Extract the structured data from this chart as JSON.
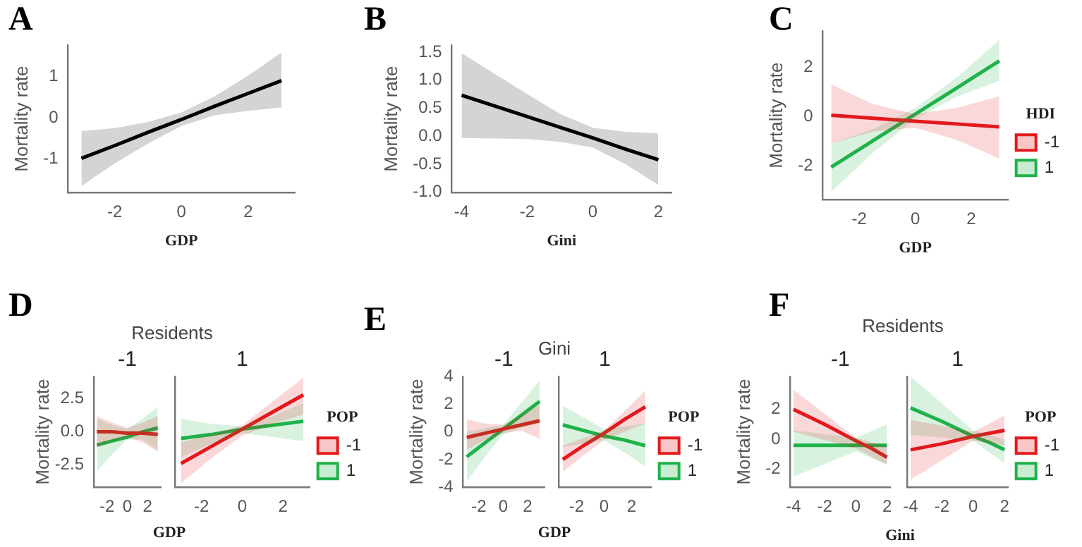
{
  "chart_data": [
    {
      "type": "line",
      "title": "A",
      "xlabel": "GDP",
      "ylabel": "Mortality rate",
      "xlim": [
        -3.4,
        3.4
      ],
      "xticks": [
        -2,
        0,
        2
      ],
      "ylim": [
        -1.8,
        1.75
      ],
      "yticks": [
        -1,
        0,
        1
      ],
      "series": [
        {
          "color": "#000000",
          "x": [
            -3,
            -2,
            -1,
            0,
            1,
            2,
            3
          ],
          "values": [
            -0.98,
            -0.67,
            -0.35,
            -0.04,
            0.28,
            0.59,
            0.9
          ],
          "lower": [
            -1.65,
            -1.1,
            -0.62,
            -0.2,
            0.06,
            0.17,
            0.25
          ],
          "upper": [
            -0.32,
            -0.25,
            -0.1,
            0.13,
            0.52,
            1.02,
            1.58
          ]
        }
      ]
    },
    {
      "type": "line",
      "title": "B",
      "xlabel": "Gini",
      "ylabel": "Mortality rate",
      "xlim": [
        -4.3,
        2.4
      ],
      "xticks": [
        -4,
        -2,
        0,
        2
      ],
      "ylim": [
        -1,
        1.62
      ],
      "yticks": [
        {
          "value": -1,
          "label": "-1.0"
        },
        -0.5,
        {
          "value": 0,
          "label": "0.0"
        },
        0.5,
        {
          "value": 1,
          "label": "1.0"
        },
        1.5
      ],
      "series": [
        {
          "color": "#000000",
          "x": [
            -4,
            -2,
            -1,
            0,
            1,
            2
          ],
          "values": [
            0.73,
            0.35,
            0.16,
            -0.03,
            -0.23,
            -0.42
          ],
          "lower": [
            -0.03,
            -0.05,
            -0.1,
            -0.2,
            -0.5,
            -0.87
          ],
          "upper": [
            1.48,
            0.75,
            0.4,
            0.15,
            0.08,
            0.05
          ]
        }
      ]
    },
    {
      "type": "line",
      "title": "C",
      "xlabel": "GDP",
      "ylabel": "Mortality rate",
      "legend": "right",
      "legend_title": "HDI",
      "xlim": [
        -3.3,
        3.3
      ],
      "xticks": [
        -2,
        0,
        2
      ],
      "ylim": [
        -3.35,
        3.45
      ],
      "yticks": [
        -2,
        0,
        2
      ],
      "series": [
        {
          "name": "-1",
          "color": "#e31a1c",
          "x": [
            -3,
            -1.5,
            0,
            1.5,
            3
          ],
          "values": [
            0.05,
            -0.07,
            -0.19,
            -0.3,
            -0.42
          ],
          "lower": [
            -1.1,
            -0.6,
            -0.45,
            -0.95,
            -1.7
          ],
          "upper": [
            1.3,
            0.5,
            0.1,
            0.35,
            0.82
          ]
        },
        {
          "name": "1",
          "color": "#1fb24a",
          "x": [
            -3,
            -1.5,
            0,
            1.5,
            3
          ],
          "values": [
            -2.05,
            -0.97,
            0.1,
            1.17,
            2.25
          ],
          "lower": [
            -3.05,
            -1.45,
            -0.1,
            0.8,
            1.45
          ],
          "upper": [
            -1.1,
            -0.5,
            0.35,
            1.6,
            3.1
          ]
        }
      ]
    },
    {
      "type": "line",
      "title": "D",
      "subtitle": "Residents",
      "xlabel": "GDP",
      "ylabel": "Mortality rate",
      "annotations": [
        "-1"
      ],
      "xlim": [
        -3.3,
        3.3
      ],
      "xticks": [
        -2,
        0,
        2
      ],
      "ylim": [
        -4.2,
        4.2
      ],
      "yticks": [
        {
          "value": -2.5,
          "label": "-2.5"
        },
        {
          "value": 0,
          "label": "0.0"
        },
        2.5
      ],
      "series": [
        {
          "color": "#e31a1c",
          "x": [
            -3,
            -1.5,
            0,
            1.5,
            3
          ],
          "values": [
            0,
            0,
            -0.1,
            -0.1,
            -0.2
          ],
          "lower": [
            -1.2,
            -0.7,
            -0.4,
            -0.8,
            -1.5
          ],
          "upper": [
            1.2,
            0.7,
            0.3,
            0.7,
            1.2
          ]
        },
        {
          "color": "#1fb24a",
          "x": [
            -3,
            -1.5,
            0,
            1.5,
            3
          ],
          "values": [
            -1,
            -0.7,
            -0.4,
            0,
            0.3
          ],
          "lower": [
            -3,
            -1.7,
            -0.6,
            -0.6,
            -1.4
          ],
          "upper": [
            1,
            0.5,
            0.2,
            1,
            1.9
          ]
        }
      ]
    },
    {
      "type": "line",
      "annotations": [
        "1"
      ],
      "legend": "right",
      "legend_title": "POP",
      "tick_labels": "x",
      "xlim": [
        -3.3,
        3.3
      ],
      "xticks": [
        -2,
        0,
        2
      ],
      "ylim": [
        -4.2,
        4.2
      ],
      "series": [
        {
          "name": "-1",
          "color": "#e31a1c",
          "x": [
            -3,
            -1.5,
            0,
            1.5,
            3
          ],
          "values": [
            -2.4,
            -1.1,
            0.2,
            1.5,
            2.8
          ],
          "lower": [
            -3.9,
            -2,
            -0.3,
            0.6,
            1.3
          ],
          "upper": [
            -0.8,
            -0.2,
            0.5,
            2.3,
            4.1
          ]
        },
        {
          "name": "1",
          "color": "#1fb24a",
          "x": [
            -3,
            -1.5,
            0,
            1.5,
            3
          ],
          "values": [
            -0.5,
            -0.2,
            0.2,
            0.5,
            0.8
          ],
          "lower": [
            -1.9,
            -0.9,
            -0.1,
            -0.4,
            -0.7
          ],
          "upper": [
            1,
            0.6,
            0.4,
            1.2,
            2.2
          ]
        }
      ]
    },
    {
      "type": "line",
      "title": "E",
      "subtitle": "Gini",
      "xlabel": "GDP",
      "ylabel": "Mortality rate",
      "annotations": [
        "-1"
      ],
      "xlim": [
        -3.3,
        3.4
      ],
      "xticks": [
        -2,
        0,
        2
      ],
      "ylim": [
        -4,
        4
      ],
      "yticks": [
        -4,
        -2,
        0,
        2,
        4
      ],
      "series": [
        {
          "color": "#e31a1c",
          "x": [
            -3,
            -1.5,
            0,
            1.5,
            3
          ],
          "values": [
            -0.4,
            -0.1,
            0.2,
            0.5,
            0.8
          ],
          "lower": [
            -1.3,
            -0.6,
            -0.1,
            0.1,
            -0.5
          ],
          "upper": [
            0.9,
            0.6,
            0.5,
            1.2,
            2
          ]
        },
        {
          "color": "#1fb24a",
          "x": [
            -3,
            -1.5,
            0,
            1.5,
            3
          ],
          "values": [
            -1.8,
            -0.8,
            0.2,
            1.2,
            2.2
          ],
          "lower": [
            -3.6,
            -1.8,
            -0.2,
            0.3,
            0.6
          ],
          "upper": [
            0,
            0.25,
            0.5,
            2.1,
            3.7
          ]
        }
      ]
    },
    {
      "type": "line",
      "annotations": [
        "1"
      ],
      "legend": "right",
      "legend_title": "POP",
      "tick_labels": "x",
      "xlim": [
        -3.3,
        3.4
      ],
      "xticks": [
        -2,
        0,
        2
      ],
      "ylim": [
        -4,
        4
      ],
      "series": [
        {
          "name": "-1",
          "color": "#e31a1c",
          "x": [
            -3,
            -1.5,
            0,
            1.5,
            3
          ],
          "values": [
            -2,
            -1,
            -0.1,
            0.9,
            1.8
          ],
          "lower": [
            -2.9,
            -1.7,
            -0.6,
            0,
            0.6
          ],
          "upper": [
            -1,
            -0.45,
            0.1,
            1.5,
            3
          ]
        },
        {
          "name": "1",
          "color": "#1fb24a",
          "x": [
            -3,
            -1.5,
            0,
            1.5,
            3
          ],
          "values": [
            0.5,
            0.1,
            -0.3,
            -0.6,
            -1
          ],
          "lower": [
            -1.1,
            -0.85,
            -0.6,
            -1.5,
            -2.5
          ],
          "upper": [
            1.9,
            1.05,
            0.2,
            0.4,
            0.6
          ]
        }
      ]
    },
    {
      "type": "line",
      "title": "F",
      "subtitle": "Residents",
      "xlabel": "Gini",
      "ylabel": "Mortality rate",
      "annotations": [
        "-1"
      ],
      "xlim": [
        -4.2,
        2.2
      ],
      "xticks": [
        -4,
        -2,
        0,
        2
      ],
      "ylim": [
        -3.2,
        4.2
      ],
      "yticks": [
        -2,
        0,
        2
      ],
      "series": [
        {
          "color": "#e31a1c",
          "x": [
            -4,
            -2,
            0,
            1,
            2
          ],
          "values": [
            2,
            1,
            -0.1,
            -0.6,
            -1.2
          ],
          "lower": [
            0.5,
            -0.05,
            -0.6,
            -1.15,
            -1.7
          ],
          "upper": [
            3.3,
            1.7,
            0.1,
            -0.2,
            -0.5
          ]
        },
        {
          "color": "#1fb24a",
          "x": [
            -4,
            -2,
            0,
            1,
            2
          ],
          "values": [
            -0.4,
            -0.4,
            -0.4,
            -0.4,
            -0.4
          ],
          "lower": [
            -2.5,
            -1.65,
            -0.8,
            -1.25,
            -1.7
          ],
          "upper": [
            0.6,
            0.35,
            0.1,
            0.55,
            1
          ]
        }
      ]
    },
    {
      "type": "line",
      "annotations": [
        "1"
      ],
      "legend": "right",
      "legend_title": "POP",
      "tick_labels": "x",
      "xlim": [
        -4.2,
        2.2
      ],
      "xticks": [
        -4,
        -2,
        0,
        2
      ],
      "ylim": [
        -3.2,
        4.2
      ],
      "series": [
        {
          "name": "-1",
          "color": "#e31a1c",
          "x": [
            -4,
            -2,
            0,
            1,
            2
          ],
          "values": [
            -0.7,
            -0.3,
            0.2,
            0.4,
            0.6
          ],
          "lower": [
            -2.7,
            -1.4,
            -0.1,
            -0.25,
            -0.4
          ],
          "upper": [
            1.3,
            0.9,
            0.5,
            1.05,
            1.6
          ]
        },
        {
          "name": "1",
          "color": "#1fb24a",
          "x": [
            -4,
            -2,
            0,
            1,
            2
          ],
          "values": [
            2.1,
            1.2,
            0.2,
            -0.2,
            -0.7
          ],
          "lower": [
            0.3,
            0.1,
            -0.1,
            -0.85,
            -1.6
          ],
          "upper": [
            4.2,
            2.4,
            0.6,
            0.3,
            0
          ]
        }
      ]
    }
  ]
}
